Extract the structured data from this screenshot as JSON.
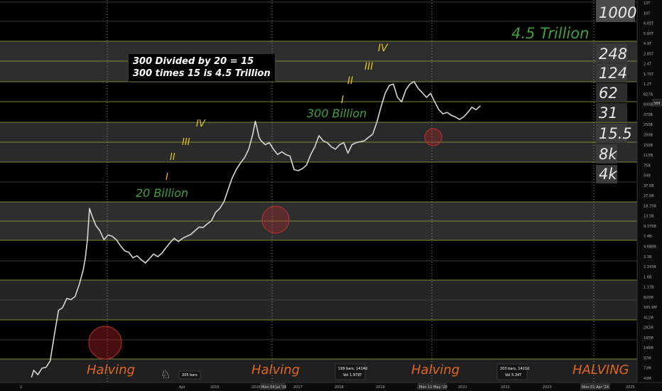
{
  "chart_data": {
    "type": "line",
    "y_scale": "log",
    "grid": true,
    "x_ticks": [
      "2",
      "Apr",
      "2015",
      "2016",
      "2017",
      "2018",
      "2019",
      "2020",
      "2021",
      "2022",
      "2023",
      "2024",
      "2025"
    ],
    "x_markers": [
      "Mon 04 Jul '16",
      "Mon 11 May '20",
      "Mon 01 Apr '24"
    ],
    "y_ticks": [
      "13T",
      "10T",
      "6.85T",
      "5.95T",
      "4.9T",
      "2.85T",
      "2.4T",
      "1.75T",
      "1.2T",
      "827B",
      "600B",
      "370B",
      "250B",
      "200B",
      "150B",
      "115B",
      "75B",
      "54B",
      "37.5B",
      "27.5B",
      "18.75B",
      "13.5B",
      "9.375B",
      "7.4B",
      "4.688B",
      "3.3B",
      "2.343B",
      "1.6B",
      "1.17B",
      "825M",
      "585.9M",
      "411M",
      "292M",
      "195M",
      "146M",
      "97M",
      "73M",
      "43M"
    ],
    "current_value_label": "388",
    "halving_labels": [
      "Halving",
      "Halving",
      "Halving",
      "HALVING"
    ],
    "cycle_labels": [
      "20 Billion",
      "300 Billion",
      "4.5 Trillion"
    ],
    "note_lines": [
      "300 Divided by 20 = 15",
      "300 times 15 is 4.5 Trillion"
    ],
    "wave_marks_1": [
      "I",
      "II",
      "III",
      "IV"
    ],
    "wave_marks_2": [
      "I",
      "II",
      "III",
      "IV"
    ],
    "multipliers": [
      "1000",
      "248",
      "124",
      "62",
      "31",
      "15.5",
      "8k",
      "4k"
    ],
    "status_boxes": [
      {
        "lines": [
          "205 bars"
        ]
      },
      {
        "lines": [
          "199 bars, 1414d",
          "Vol 1.979T"
        ]
      },
      {
        "lines": [
          "203 bars, 1421d",
          "Vol 5.34T"
        ]
      }
    ],
    "series": [
      {
        "x": [
          2012.55,
          2012.6,
          2012.7,
          2012.8,
          2012.9,
          2013.0,
          2013.1,
          2013.2,
          2013.3,
          2013.4,
          2013.5,
          2013.6,
          2013.7,
          2013.8,
          2013.85,
          2013.9,
          2013.95,
          2014.0,
          2014.1,
          2014.2,
          2014.3,
          2014.4,
          2014.5,
          2014.6,
          2014.7,
          2014.8,
          2014.9,
          2015.0,
          2015.1,
          2015.2,
          2015.3,
          2015.4,
          2015.5,
          2015.6,
          2015.7,
          2015.8,
          2015.9,
          2016.0,
          2016.1,
          2016.2,
          2016.3,
          2016.4,
          2016.5,
          2016.6,
          2016.7,
          2016.8,
          2016.9,
          2017.0,
          2017.1,
          2017.2,
          2017.3,
          2017.4,
          2017.5,
          2017.6,
          2017.7,
          2017.8,
          2017.9,
          2017.96,
          2018.0,
          2018.05,
          2018.1,
          2018.2,
          2018.3,
          2018.4,
          2018.5,
          2018.6,
          2018.7,
          2018.8,
          2018.9,
          2019.0,
          2019.1,
          2019.2,
          2019.3,
          2019.4,
          2019.5,
          2019.6,
          2019.7,
          2019.8,
          2019.9,
          2020.0,
          2020.1,
          2020.2,
          2020.3,
          2020.4,
          2020.5,
          2020.6,
          2020.7,
          2020.8,
          2020.9,
          2021.0,
          2021.1,
          2021.2,
          2021.3,
          2021.4,
          2021.5,
          2021.6,
          2021.7,
          2021.8,
          2021.9,
          2022.0,
          2022.1,
          2022.2,
          2022.3,
          2022.4,
          2022.5,
          2022.6,
          2022.7,
          2022.8,
          2022.9,
          2023.0,
          2023.1,
          2023.2,
          2023.3,
          2023.4
        ],
        "values": [
          0.052,
          0.065,
          0.056,
          0.07,
          0.072,
          0.09,
          0.22,
          0.5,
          0.55,
          0.75,
          0.72,
          0.8,
          1.2,
          2.0,
          3.0,
          5.6,
          16.0,
          13.0,
          9.0,
          7.5,
          5.5,
          6.5,
          6.2,
          5.5,
          4.5,
          3.8,
          3.6,
          3.0,
          3.2,
          2.8,
          2.5,
          2.9,
          3.4,
          3.1,
          3.5,
          4.2,
          5.0,
          5.8,
          5.2,
          5.8,
          6.2,
          6.6,
          7.5,
          8.5,
          8.4,
          9.5,
          10.5,
          14.0,
          16.0,
          20.0,
          30.0,
          45.0,
          60.0,
          75.0,
          90.0,
          120.0,
          200.0,
          310.0,
          250.0,
          180.0,
          160.0,
          140.0,
          150.0,
          120.0,
          100.0,
          110.0,
          100.0,
          95.0,
          60.0,
          58.0,
          62.0,
          70.0,
          100.0,
          130.0,
          190.0,
          160.0,
          150.0,
          130.0,
          120.0,
          140.0,
          150.0,
          105.0,
          140.0,
          150.0,
          155.0,
          160.0,
          180.0,
          200.0,
          300.0,
          500.0,
          800.0,
          1050.0,
          1100.0,
          700.0,
          600.0,
          900.0,
          1100.0,
          1200.0,
          950.0,
          820.0,
          700.0,
          800.0,
          600.0,
          460.0,
          400.0,
          420.0,
          380.0,
          360.0,
          330.0,
          360.0,
          420.0,
          500.0,
          460.0,
          520.0
        ]
      }
    ]
  }
}
